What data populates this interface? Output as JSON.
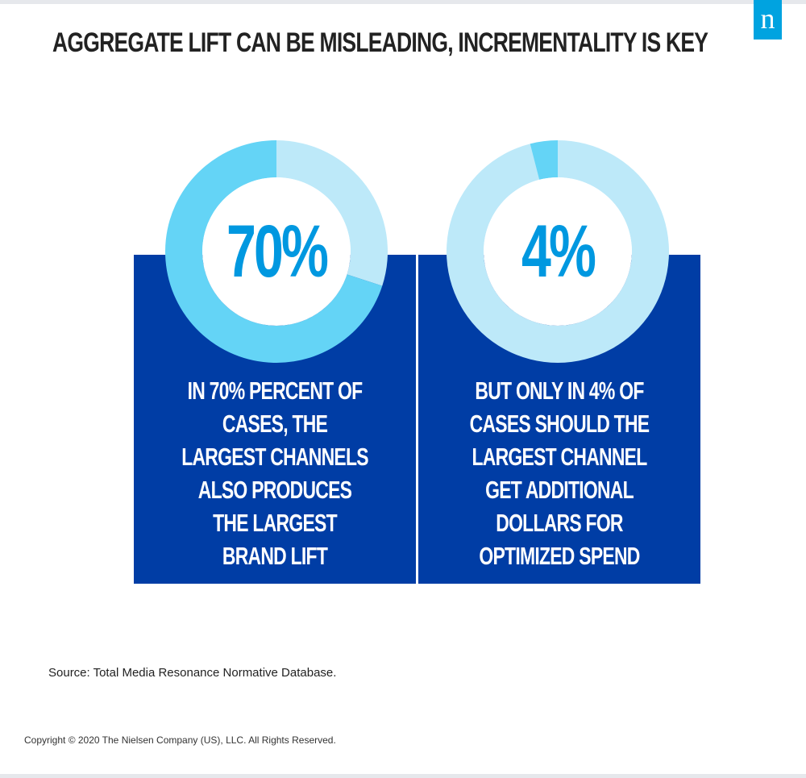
{
  "header": {
    "title": "AGGREGATE LIFT CAN BE MISLEADING, INCREMENTALITY IS KEY",
    "logo_letter": "n"
  },
  "colors": {
    "panel": "#003da5",
    "donut_highlight": "#64d4f6",
    "donut_track": "#bde9f9",
    "percent_text": "#0098e0",
    "logo_bg": "#00a3e0"
  },
  "chart_data": [
    {
      "type": "pie",
      "variant": "donut",
      "values": [
        70,
        30
      ],
      "highlight_value": 70,
      "center_label": "70%",
      "caption": "IN 70% PERCENT OF CASES, THE LARGEST CHANNELS ALSO PRODUCES THE LARGEST BRAND LIFT"
    },
    {
      "type": "pie",
      "variant": "donut",
      "values": [
        4,
        96
      ],
      "highlight_value": 4,
      "center_label": "4%",
      "caption": "BUT ONLY IN 4% OF CASES SHOULD THE LARGEST CHANNEL GET ADDITIONAL DOLLARS FOR OPTIMIZED SPEND"
    }
  ],
  "footer": {
    "source": "Source: Total Media Resonance Normative Database.",
    "copyright": "Copyright © 2020 The Nielsen Company (US), LLC. All Rights Reserved."
  }
}
